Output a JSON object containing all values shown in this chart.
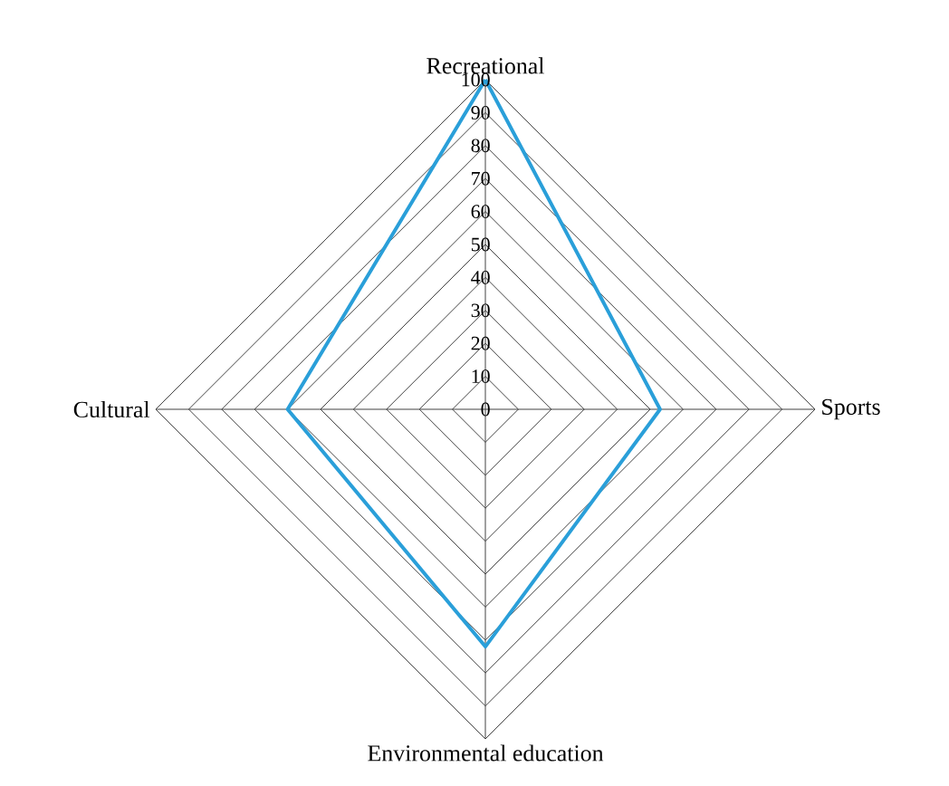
{
  "chart_data": {
    "type": "radar",
    "categories": [
      "Recreational",
      "Sports",
      "Environmental education",
      "Cultural"
    ],
    "series": [
      {
        "color": "#2a9fd9",
        "values": [
          100,
          53,
          72,
          60
        ]
      }
    ],
    "ylim": [
      0,
      100
    ],
    "yticks": [
      0,
      10,
      20,
      30,
      40,
      50,
      60,
      70,
      80,
      90,
      100
    ]
  }
}
